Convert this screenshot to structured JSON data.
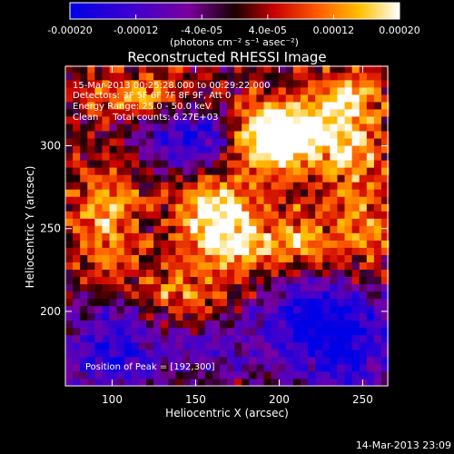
{
  "chart_data": {
    "type": "heatmap",
    "title": "Reconstructed RHESSI Image",
    "xlabel": "Heliocentric X (arcsec)",
    "ylabel": "Heliocentric Y (arcsec)",
    "xlim": [
      72,
      265
    ],
    "ylim": [
      155,
      348
    ],
    "x_ticks": [
      100,
      150,
      200,
      250
    ],
    "y_ticks": [
      200,
      250,
      300
    ],
    "colorbar": {
      "colormap": "black-blue-purple-red-orange-yellow-white",
      "range": [
        -0.0002,
        0.0002
      ],
      "tick_values": [
        -0.0002,
        -0.00012,
        -4e-05,
        4e-05,
        0.00012,
        0.0002
      ],
      "tick_labels": [
        "-0.00020",
        "-0.00012",
        "-4.0e-05",
        "4.0e-05",
        "0.00012",
        "0.00020"
      ],
      "unit_label": "(photons cm⁻² s⁻¹ asec⁻²)"
    },
    "annotations": [
      "15-Mar-2013 00:25:28.000 to 00:29:22.000",
      "Detectors: 3F 5F 6F 7F 8F 9F, Att 0",
      "Energy Range: 25.0 - 50.0 keV",
      "Clean     Total counts: 6.27E+03"
    ],
    "peak_label": "Position of Peak = [192,300]",
    "peak": [
      192,
      300
    ],
    "timestamp": "14-Mar-2013 23:09",
    "grid": false,
    "emission_regions": [
      {
        "x": 192,
        "y": 300,
        "amp": 1.0,
        "sx": 16,
        "sy": 14
      },
      {
        "x": 205,
        "y": 312,
        "amp": 0.85,
        "sx": 22,
        "sy": 12
      },
      {
        "x": 160,
        "y": 262,
        "amp": 0.85,
        "sx": 16,
        "sy": 14
      },
      {
        "x": 175,
        "y": 240,
        "amp": 0.75,
        "sx": 20,
        "sy": 14
      },
      {
        "x": 96,
        "y": 262,
        "amp": 0.75,
        "sx": 14,
        "sy": 16
      },
      {
        "x": 240,
        "y": 330,
        "amp": 0.8,
        "sx": 14,
        "sy": 10
      },
      {
        "x": 240,
        "y": 300,
        "amp": 0.7,
        "sx": 16,
        "sy": 14
      },
      {
        "x": 115,
        "y": 330,
        "amp": 0.7,
        "sx": 24,
        "sy": 8
      },
      {
        "x": 250,
        "y": 250,
        "amp": 0.6,
        "sx": 12,
        "sy": 22
      },
      {
        "x": 140,
        "y": 210,
        "amp": 0.55,
        "sx": 18,
        "sy": 12
      },
      {
        "x": 215,
        "y": 240,
        "amp": 0.6,
        "sx": 14,
        "sy": 16
      },
      {
        "x": 100,
        "y": 230,
        "amp": 0.5,
        "sx": 14,
        "sy": 10
      }
    ],
    "absorption_regions": [
      {
        "x": 150,
        "y": 305,
        "amp": -0.9,
        "sx": 22,
        "sy": 14
      },
      {
        "x": 100,
        "y": 175,
        "amp": -0.8,
        "sx": 22,
        "sy": 22
      },
      {
        "x": 240,
        "y": 180,
        "amp": -0.85,
        "sx": 26,
        "sy": 26
      },
      {
        "x": 215,
        "y": 200,
        "amp": -0.7,
        "sx": 20,
        "sy": 18
      },
      {
        "x": 160,
        "y": 175,
        "amp": -0.5,
        "sx": 20,
        "sy": 14
      }
    ]
  }
}
